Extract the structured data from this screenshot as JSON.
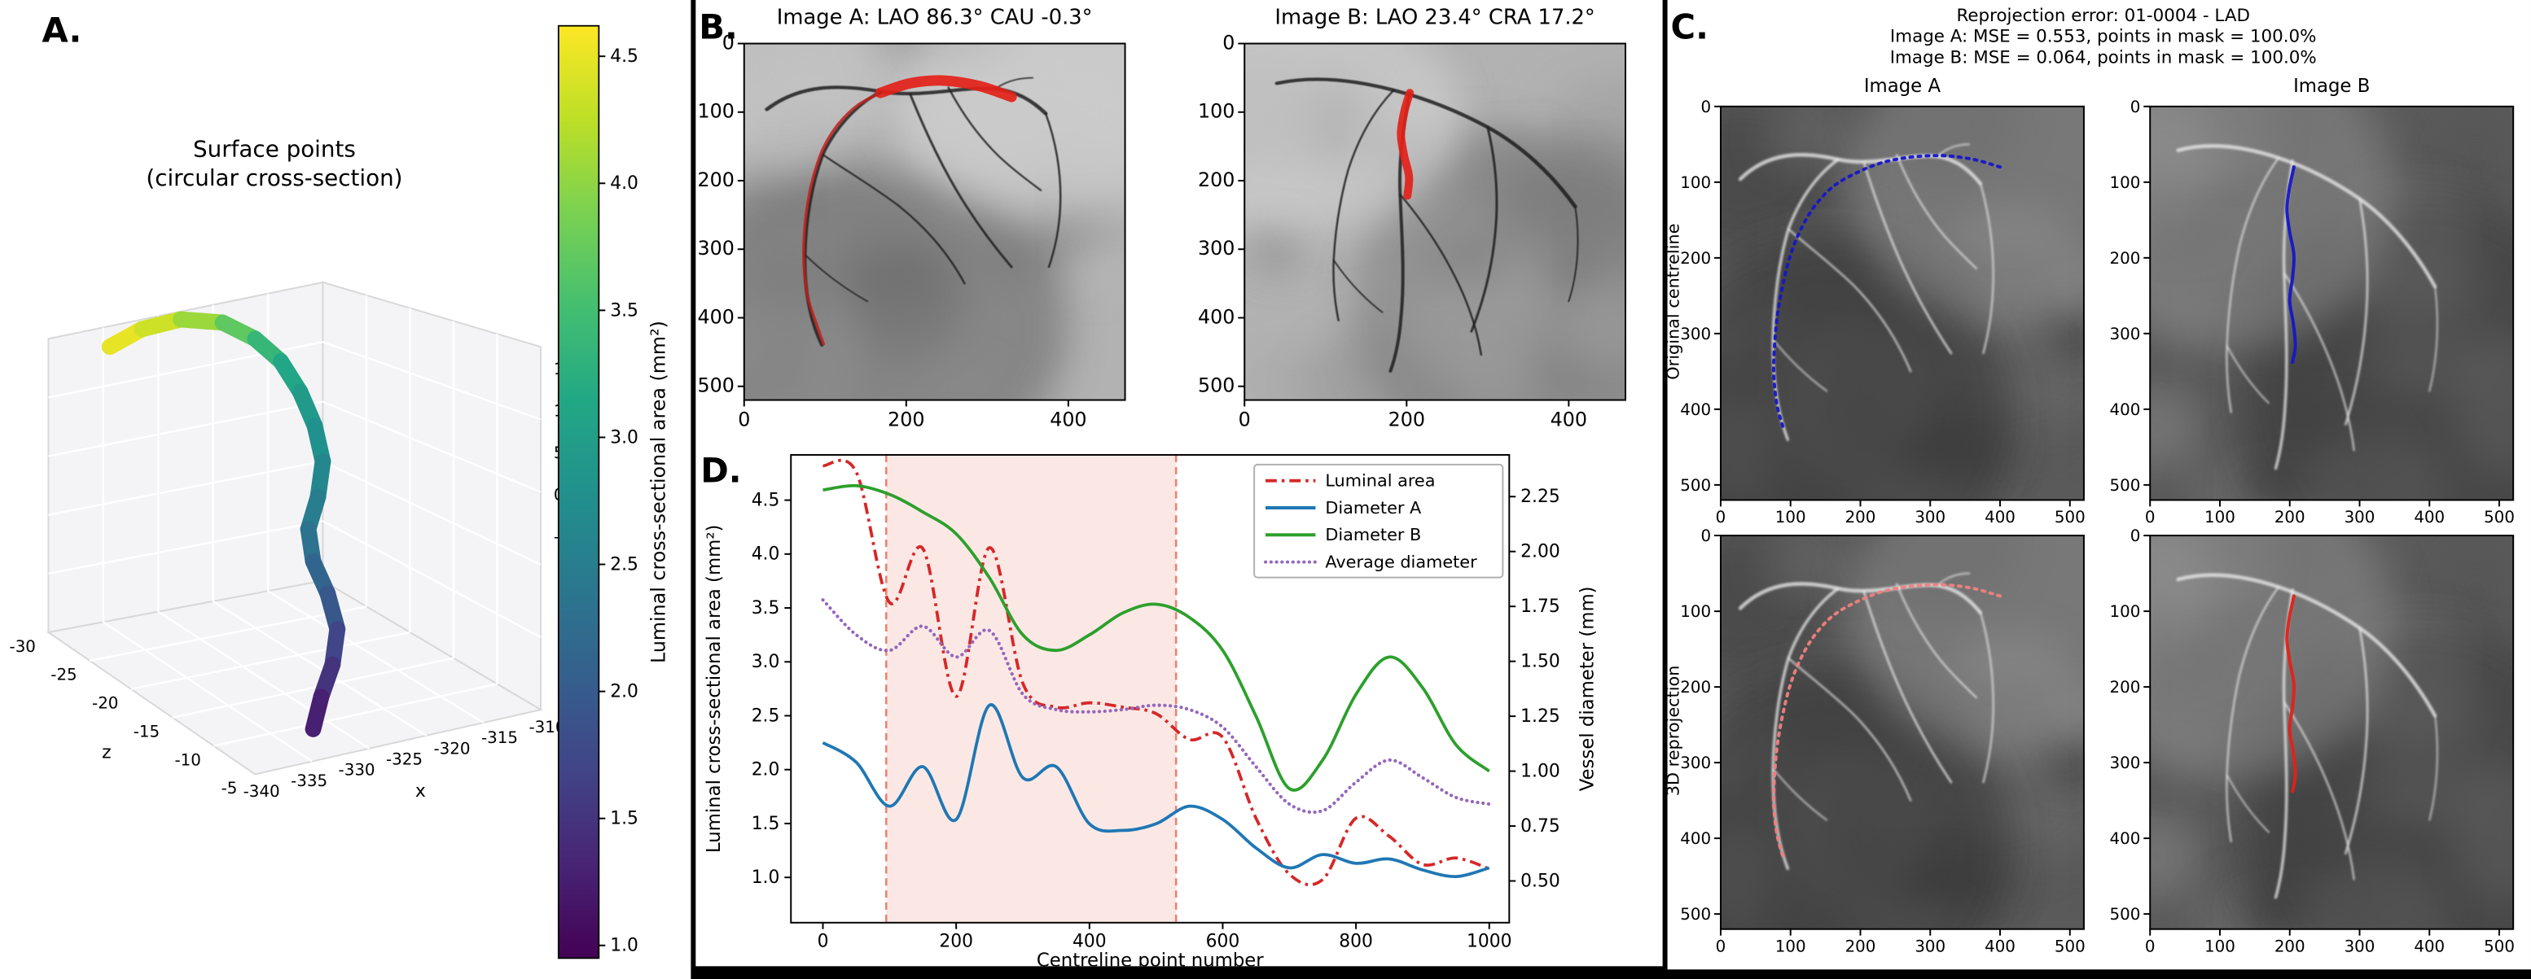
{
  "panel_a": {
    "label": "A.",
    "title_line1": "Surface points",
    "title_line2": "(circular cross-section)",
    "x_axis_label": "x",
    "z_axis_label": "z",
    "x_ticks": [
      "-340",
      "-335",
      "-330",
      "-325",
      "-320",
      "-315",
      "-310"
    ],
    "z_ticks": [
      "-30",
      "-25",
      "-20",
      "-15",
      "-10",
      "-5"
    ],
    "v_ticks": [
      "15",
      "10",
      "5",
      "0",
      "-5"
    ],
    "tube": {
      "points": [
        [
          68,
          215,
          0.98
        ],
        [
          88,
          204,
          0.95
        ],
        [
          112,
          198,
          0.9
        ],
        [
          138,
          200,
          0.8
        ],
        [
          158,
          210,
          0.7
        ],
        [
          174,
          224,
          0.62
        ],
        [
          186,
          243,
          0.56
        ],
        [
          195,
          264,
          0.52
        ],
        [
          200,
          286,
          0.48
        ],
        [
          197,
          308,
          0.44
        ],
        [
          191,
          328,
          0.4
        ],
        [
          194,
          348,
          0.35
        ],
        [
          203,
          368,
          0.3
        ],
        [
          209,
          390,
          0.24
        ],
        [
          206,
          412,
          0.18
        ],
        [
          199,
          432,
          0.12
        ],
        [
          194,
          452,
          0.06
        ]
      ]
    },
    "colorbar": {
      "label": "Luminal cross-sectional area (mm²)",
      "ticks": [
        "4.5",
        "4.0",
        "3.5",
        "3.0",
        "2.5",
        "2.0",
        "1.5",
        "1.0"
      ],
      "vmin": 0.95,
      "vmax": 4.62
    }
  },
  "panel_b": {
    "label": "B.",
    "image_a": {
      "title": "Image A: LAO 86.3° CAU -0.3°",
      "x_ticks": [
        "0",
        "200",
        "400"
      ],
      "y_ticks": [
        "0",
        "100",
        "200",
        "300",
        "400",
        "500"
      ],
      "overlays": [
        {
          "name": "segmented-vessel-thick",
          "color": "#e32119",
          "width": 6.5,
          "opacity": 0.92,
          "points": [
            [
              168,
              72
            ],
            [
              205,
              58
            ],
            [
              245,
              54
            ],
            [
              290,
              62
            ],
            [
              330,
              78
            ]
          ]
        },
        {
          "name": "segmented-vessel-thin",
          "color": "#c0201a",
          "width": 1.8,
          "opacity": 0.85,
          "points": [
            [
              168,
              72
            ],
            [
              140,
              90
            ],
            [
              116,
              118
            ],
            [
              98,
              152
            ],
            [
              86,
              192
            ],
            [
              78,
              236
            ],
            [
              74,
              282
            ],
            [
              74,
              328
            ],
            [
              79,
              372
            ],
            [
              90,
              412
            ],
            [
              98,
              438
            ]
          ]
        }
      ]
    },
    "image_b": {
      "title": "Image B: LAO 23.4° CRA 17.2°",
      "x_ticks": [
        "0",
        "200",
        "400"
      ],
      "y_ticks": [
        "0",
        "100",
        "200",
        "300",
        "400",
        "500"
      ],
      "overlays": [
        {
          "name": "segmented-vessel-thick",
          "color": "#e32119",
          "width": 5,
          "opacity": 0.92,
          "points": [
            [
              204,
              72
            ],
            [
              197,
              100
            ],
            [
              193,
              132
            ],
            [
              197,
              164
            ],
            [
              203,
              194
            ],
            [
              201,
              222
            ]
          ]
        }
      ]
    }
  },
  "panel_c": {
    "label": "C.",
    "header_line1": "Reprojection error: 01-0004 - LAD",
    "header_line2": "Image A: MSE = 0.553, points in mask = 100.0%",
    "header_line3": "Image B: MSE = 0.064, points in mask = 100.0%",
    "col_titles": [
      "Image A",
      "Image B"
    ],
    "row_labels": [
      "Original centreline",
      "3D reprojection"
    ],
    "axis_ticks": {
      "x": [
        "0",
        "100",
        "200",
        "300",
        "400",
        "500"
      ],
      "y": [
        "0",
        "100",
        "200",
        "300",
        "400",
        "500"
      ]
    },
    "cells": [
      {
        "row": "Original centreline",
        "col": "Image A",
        "overlay": {
          "name": "original-centreline-a",
          "color": "#1616c8",
          "width": 2,
          "dash": "1.6 3.4",
          "opacity": 0.95,
          "points": [
            [
              400,
              80
            ],
            [
              362,
              70
            ],
            [
              318,
              65
            ],
            [
              272,
              67
            ],
            [
              232,
              74
            ],
            [
              196,
              87
            ],
            [
              162,
              105
            ],
            [
              136,
              130
            ],
            [
              116,
              160
            ],
            [
              100,
              196
            ],
            [
              89,
              236
            ],
            [
              81,
              278
            ],
            [
              77,
              318
            ],
            [
              76,
              356
            ],
            [
              81,
              396
            ],
            [
              90,
              426
            ]
          ]
        }
      },
      {
        "row": "Original centreline",
        "col": "Image B",
        "overlay": {
          "name": "original-centreline-b",
          "color": "#1616c8",
          "width": 2,
          "dash": "",
          "opacity": 0.95,
          "points": [
            [
              206,
              80
            ],
            [
              200,
              106
            ],
            [
              196,
              136
            ],
            [
              200,
              166
            ],
            [
              206,
              196
            ],
            [
              204,
              226
            ],
            [
              200,
              256
            ],
            [
              205,
              286
            ],
            [
              208,
              316
            ],
            [
              204,
              338
            ]
          ]
        }
      },
      {
        "row": "3D reprojection",
        "col": "Image A",
        "overlay": {
          "name": "reprojected-centreline-a",
          "color": "#f08080",
          "width": 2,
          "dash": "1.6 3.4",
          "opacity": 0.95,
          "points": [
            [
              400,
              80
            ],
            [
              362,
              70
            ],
            [
              318,
              65
            ],
            [
              272,
              67
            ],
            [
              232,
              74
            ],
            [
              196,
              87
            ],
            [
              162,
              105
            ],
            [
              136,
              130
            ],
            [
              116,
              160
            ],
            [
              100,
              196
            ],
            [
              89,
              236
            ],
            [
              81,
              278
            ],
            [
              77,
              318
            ],
            [
              76,
              356
            ],
            [
              81,
              396
            ],
            [
              90,
              426
            ]
          ]
        }
      },
      {
        "row": "3D reprojection",
        "col": "Image B",
        "overlay": {
          "name": "reprojected-centreline-b",
          "color": "#e32119",
          "width": 2,
          "dash": "",
          "opacity": 0.95,
          "points": [
            [
              206,
              80
            ],
            [
              200,
              106
            ],
            [
              196,
              136
            ],
            [
              200,
              166
            ],
            [
              206,
              196
            ],
            [
              204,
              226
            ],
            [
              200,
              256
            ],
            [
              205,
              286
            ],
            [
              208,
              316
            ],
            [
              204,
              338
            ]
          ]
        }
      }
    ]
  },
  "panel_d": {
    "label": "D."
  },
  "chart_data": {
    "type": "line",
    "xlabel": "Centreline point number",
    "ylabel_left": "Luminal cross-sectional area (mm²)",
    "ylabel_right": "Vessel diameter (mm)",
    "xlim": [
      -48,
      1030
    ],
    "ylim_left": [
      0.58,
      4.92
    ],
    "ylim_right": [
      0.31,
      2.44
    ],
    "x_tick_labels": [
      "0",
      "200",
      "400",
      "600",
      "800",
      "1000"
    ],
    "y_tick_labels_left": [
      "1.0",
      "1.5",
      "2.0",
      "2.5",
      "3.0",
      "3.5",
      "4.0",
      "4.5"
    ],
    "y_tick_labels_right": [
      "0.50",
      "0.75",
      "1.00",
      "1.25",
      "1.50",
      "1.75",
      "2.00",
      "2.25"
    ],
    "shaded_region": {
      "x_start": 95,
      "x_end": 530,
      "fill": "#f8d8d3",
      "edge": "#f08070"
    },
    "legend_position": "upper right",
    "x": [
      0,
      50,
      100,
      150,
      200,
      250,
      300,
      350,
      400,
      450,
      500,
      550,
      600,
      650,
      700,
      750,
      800,
      850,
      900,
      950,
      1000
    ],
    "series": [
      {
        "name": "Luminal area",
        "axis": "left",
        "color": "#d62728",
        "style": "dashdot",
        "values": [
          4.82,
          4.76,
          3.55,
          4.05,
          2.68,
          4.06,
          2.8,
          2.58,
          2.62,
          2.58,
          2.52,
          2.28,
          2.3,
          1.55,
          1.03,
          0.98,
          1.55,
          1.38,
          1.12,
          1.18,
          1.08
        ]
      },
      {
        "name": "Diameter A",
        "axis": "right",
        "color": "#1f77b4",
        "style": "solid",
        "values": [
          1.13,
          1.04,
          0.84,
          1.02,
          0.78,
          1.3,
          0.97,
          1.02,
          0.76,
          0.73,
          0.76,
          0.84,
          0.78,
          0.65,
          0.56,
          0.62,
          0.58,
          0.6,
          0.55,
          0.52,
          0.56
        ]
      },
      {
        "name": "Diameter B",
        "axis": "right",
        "color": "#2ca02c",
        "style": "solid",
        "values": [
          2.28,
          2.3,
          2.26,
          2.18,
          2.08,
          1.88,
          1.62,
          1.55,
          1.62,
          1.72,
          1.76,
          1.7,
          1.55,
          1.25,
          0.92,
          1.05,
          1.35,
          1.52,
          1.38,
          1.12,
          1.0
        ]
      },
      {
        "name": "Average diameter",
        "axis": "right",
        "color": "#9467bd",
        "style": "dotted",
        "values": [
          1.78,
          1.62,
          1.55,
          1.66,
          1.52,
          1.64,
          1.35,
          1.28,
          1.27,
          1.28,
          1.3,
          1.28,
          1.2,
          1.02,
          0.85,
          0.82,
          0.95,
          1.05,
          0.97,
          0.88,
          0.85
        ]
      }
    ]
  }
}
